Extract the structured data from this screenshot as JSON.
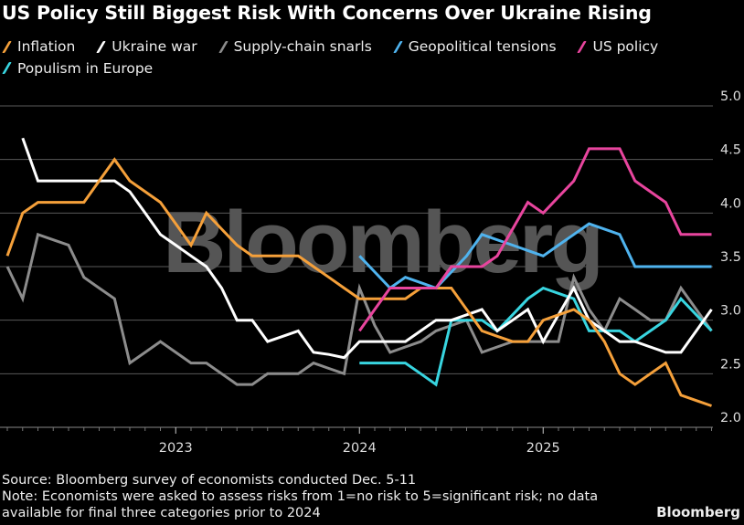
{
  "chart_data": {
    "type": "line",
    "title": "US Policy Still Biggest Risk With Concerns Over Ukraine Rising",
    "xlabel": "",
    "ylabel": "",
    "ylim": [
      2.0,
      5.0
    ],
    "yticks": [
      "2.0",
      "2.5",
      "3.0",
      "3.5",
      "4.0",
      "4.5",
      "5.0"
    ],
    "xticks": [
      {
        "label": "2023",
        "month_index": 11
      },
      {
        "label": "2024",
        "month_index": 23
      },
      {
        "label": "2025",
        "month_index": 35
      }
    ],
    "grid": true,
    "legend_position": "top-left",
    "watermark": "Bloomberg",
    "x_start": "Feb 2022",
    "x_end": "Dec 2025",
    "x_months": 47,
    "series": [
      {
        "name": "Inflation",
        "color": "#f5a03a",
        "values": [
          3.6,
          4.0,
          4.1,
          4.1,
          4.1,
          4.1,
          4.3,
          4.5,
          4.3,
          4.2,
          4.1,
          3.9,
          3.7,
          4.0,
          3.85,
          3.7,
          3.6,
          3.6,
          3.6,
          3.6,
          3.5,
          3.4,
          3.3,
          3.2,
          3.2,
          3.2,
          3.2,
          3.3,
          3.3,
          3.3,
          3.1,
          2.9,
          2.85,
          2.8,
          2.8,
          3.0,
          3.05,
          3.1,
          3.0,
          2.8,
          2.5,
          2.4,
          2.5,
          2.6,
          2.3,
          2.25,
          2.2
        ]
      },
      {
        "name": "Ukraine war",
        "color": "#ffffff",
        "values": [
          null,
          4.7,
          4.3,
          4.3,
          4.3,
          4.3,
          4.3,
          4.3,
          4.2,
          4.0,
          3.8,
          3.7,
          3.6,
          3.5,
          3.3,
          3.0,
          3.0,
          2.8,
          2.85,
          2.9,
          2.7,
          2.68,
          2.65,
          2.8,
          2.8,
          2.8,
          2.8,
          2.9,
          3.0,
          3.0,
          3.05,
          3.1,
          2.9,
          3.0,
          3.1,
          2.8,
          3.05,
          3.3,
          3.0,
          2.9,
          2.8,
          2.8,
          2.75,
          2.7,
          2.7,
          2.9,
          3.1
        ]
      },
      {
        "name": "Supply-chain snarls",
        "color": "#8c8c8c",
        "values": [
          3.5,
          3.2,
          3.8,
          3.75,
          3.7,
          3.4,
          3.3,
          3.2,
          2.6,
          2.7,
          2.8,
          2.7,
          2.6,
          2.6,
          2.5,
          2.4,
          2.4,
          2.5,
          2.5,
          2.5,
          2.6,
          2.55,
          2.5,
          3.3,
          2.95,
          2.7,
          2.75,
          2.8,
          2.9,
          2.95,
          3.0,
          2.7,
          2.75,
          2.8,
          2.8,
          2.8,
          2.8,
          3.4,
          3.1,
          2.9,
          3.2,
          3.1,
          3.0,
          3.0,
          3.3,
          3.1,
          2.9
        ]
      },
      {
        "name": "Geopolitical tensions",
        "color": "#4fb3ee",
        "values": [
          null,
          null,
          null,
          null,
          null,
          null,
          null,
          null,
          null,
          null,
          null,
          null,
          null,
          null,
          null,
          null,
          null,
          null,
          null,
          null,
          null,
          null,
          null,
          3.6,
          3.45,
          3.3,
          3.4,
          3.35,
          3.3,
          3.45,
          3.6,
          3.8,
          3.75,
          3.7,
          3.65,
          3.6,
          3.7,
          3.8,
          3.9,
          3.85,
          3.8,
          3.5,
          3.5,
          3.5,
          3.5,
          3.5,
          3.5
        ]
      },
      {
        "name": "US policy",
        "color": "#e8459e",
        "values": [
          null,
          null,
          null,
          null,
          null,
          null,
          null,
          null,
          null,
          null,
          null,
          null,
          null,
          null,
          null,
          null,
          null,
          null,
          null,
          null,
          null,
          null,
          null,
          2.9,
          3.1,
          3.3,
          3.3,
          3.3,
          3.3,
          3.5,
          3.5,
          3.5,
          3.6,
          3.85,
          4.1,
          4.0,
          4.15,
          4.3,
          4.6,
          4.6,
          4.6,
          4.3,
          4.2,
          4.1,
          3.8,
          3.8,
          3.8
        ]
      },
      {
        "name": "Populism in Europe",
        "color": "#38d5e0",
        "values": [
          null,
          null,
          null,
          null,
          null,
          null,
          null,
          null,
          null,
          null,
          null,
          null,
          null,
          null,
          null,
          null,
          null,
          null,
          null,
          null,
          null,
          null,
          null,
          2.6,
          2.6,
          2.6,
          2.6,
          2.5,
          2.4,
          3.0,
          3.0,
          3.0,
          2.9,
          3.05,
          3.2,
          3.3,
          3.25,
          3.2,
          2.9,
          2.9,
          2.9,
          2.8,
          2.9,
          3.0,
          3.2,
          3.05,
          2.9
        ]
      }
    ]
  },
  "footer": {
    "source": "Source: Bloomberg survey of economists conducted Dec. 5-11",
    "note_line1": "Note: Economists were asked to assess risks from 1=no risk to 5=significant risk; no data",
    "note_line2": "available for final three categories prior to 2024",
    "brand": "Bloomberg"
  }
}
